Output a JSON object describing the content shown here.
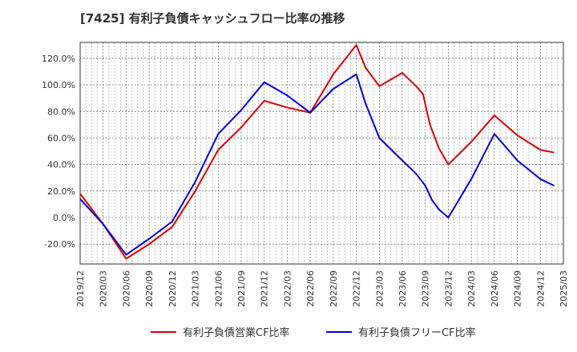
{
  "title": "[7425]  有利子負債キャッシュフロー比率の推移",
  "chart_data": {
    "type": "line",
    "x": [
      "2019/12",
      "2020/03",
      "2020/06",
      "2020/09",
      "2020/12",
      "2021/03",
      "2021/06",
      "2021/09",
      "2021/12",
      "2022/03",
      "2022/06",
      "2022/09",
      "2022/12",
      "2023/03",
      "2023/06",
      "2023/09",
      "2023/12",
      "2024/03",
      "2024/06",
      "2024/09",
      "2024/12",
      "2025/03"
    ],
    "x_minor_count": 3,
    "ylim": [
      -35,
      132
    ],
    "yticks": [
      -20,
      0,
      20,
      40,
      60,
      80,
      100,
      120
    ],
    "ytick_labels": [
      "-20.0%",
      "0.0%",
      "20.0%",
      "40.0%",
      "60.0%",
      "80.0%",
      "100.0%",
      "120.0%"
    ],
    "grid": true,
    "legend_position": "bottom",
    "series": [
      {
        "name": "有利子負債営業CF比率",
        "color": "#dd0000",
        "points": [
          [
            0,
            18
          ],
          [
            1,
            -5
          ],
          [
            2,
            -31
          ],
          [
            3,
            -20
          ],
          [
            4,
            -7
          ],
          [
            5,
            20
          ],
          [
            6,
            51
          ],
          [
            7,
            68
          ],
          [
            8,
            88
          ],
          [
            9,
            83
          ],
          [
            10,
            79
          ],
          [
            11,
            108
          ],
          [
            12,
            130
          ],
          [
            12.4,
            113
          ],
          [
            13,
            99
          ],
          [
            14,
            109
          ],
          [
            14.6,
            99
          ],
          [
            14.9,
            93
          ],
          [
            15.2,
            70
          ],
          [
            15.6,
            52
          ],
          [
            16,
            40
          ],
          [
            17,
            57
          ],
          [
            18,
            77
          ],
          [
            19,
            62
          ],
          [
            20,
            51
          ],
          [
            20.6,
            49
          ]
        ]
      },
      {
        "name": "有利子負債フリーCF比率",
        "color": "#0000dd",
        "points": [
          [
            0,
            14
          ],
          [
            1,
            -5
          ],
          [
            2,
            -28
          ],
          [
            3,
            -16
          ],
          [
            4,
            -3
          ],
          [
            5,
            27
          ],
          [
            6,
            63
          ],
          [
            7,
            81
          ],
          [
            8,
            102
          ],
          [
            9,
            92
          ],
          [
            10,
            79
          ],
          [
            11,
            97
          ],
          [
            12,
            108
          ],
          [
            12.4,
            86
          ],
          [
            13,
            60
          ],
          [
            14,
            43
          ],
          [
            14.6,
            33
          ],
          [
            15,
            24
          ],
          [
            15.3,
            13
          ],
          [
            15.6,
            6
          ],
          [
            16,
            0
          ],
          [
            17,
            29
          ],
          [
            18,
            63
          ],
          [
            19,
            43
          ],
          [
            20,
            29
          ],
          [
            20.6,
            24
          ]
        ]
      }
    ]
  }
}
